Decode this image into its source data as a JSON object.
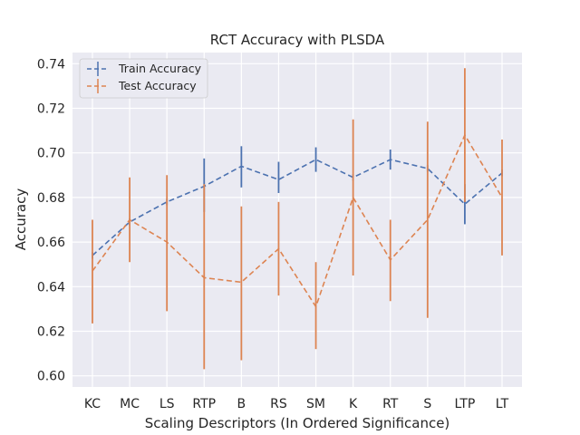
{
  "chart_data": {
    "type": "line",
    "title": "RCT Accuracy with PLSDA",
    "xlabel": "Scaling Descriptors (In Ordered Significance)",
    "ylabel": "Accuracy",
    "categories": [
      "KC",
      "MC",
      "LS",
      "RTP",
      "B",
      "RS",
      "SM",
      "K",
      "RT",
      "S",
      "LTP",
      "LT"
    ],
    "ylim": [
      0.595,
      0.745
    ],
    "yticks": [
      "0.60",
      "0.62",
      "0.64",
      "0.66",
      "0.68",
      "0.70",
      "0.72",
      "0.74"
    ],
    "grid": true,
    "legend_position": "top-left",
    "series": [
      {
        "name": "Train Accuracy",
        "color": "#4c72b0",
        "values": [
          0.654,
          0.669,
          0.678,
          0.685,
          0.694,
          0.688,
          0.697,
          0.689,
          0.697,
          0.693,
          0.677,
          0.691
        ],
        "err_low": [
          0.6525,
          0.6675,
          0.6765,
          0.6735,
          0.6845,
          0.682,
          0.6915,
          0.6875,
          0.6925,
          0.6915,
          0.668,
          0.6895
        ],
        "err_high": [
          0.6555,
          0.6705,
          0.6795,
          0.6975,
          0.703,
          0.696,
          0.7025,
          0.6905,
          0.7015,
          0.6945,
          0.686,
          0.6925
        ]
      },
      {
        "name": "Test Accuracy",
        "color": "#dd8452",
        "values": [
          0.647,
          0.67,
          0.66,
          0.644,
          0.642,
          0.657,
          0.631,
          0.68,
          0.652,
          0.67,
          0.708,
          0.68
        ],
        "err_low": [
          0.6235,
          0.651,
          0.629,
          0.603,
          0.607,
          0.636,
          0.612,
          0.645,
          0.6335,
          0.626,
          0.678,
          0.654
        ],
        "err_high": [
          0.67,
          0.689,
          0.69,
          0.686,
          0.676,
          0.678,
          0.651,
          0.715,
          0.67,
          0.714,
          0.738,
          0.706
        ]
      }
    ]
  }
}
